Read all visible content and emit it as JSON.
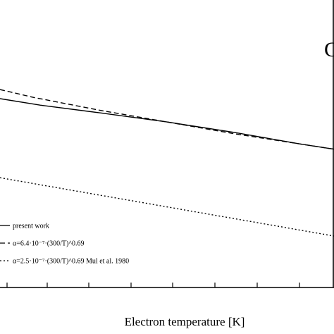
{
  "chart_data": {
    "type": "line",
    "panel_label": "C",
    "xlabel": "Electron temperature [K]",
    "ylabel": "",
    "title": "",
    "grid": false,
    "legend_position": "bottom-left",
    "x_ticks_count": 9,
    "series": [
      {
        "name": "present work",
        "style": "solid",
        "color": "#000000",
        "points": [
          [
            0,
            0.63
          ],
          [
            0.12,
            0.58
          ],
          [
            0.3,
            0.52
          ],
          [
            0.5,
            0.45
          ],
          [
            0.7,
            0.37
          ],
          [
            0.9,
            0.28
          ],
          [
            1.0,
            0.24
          ]
        ]
      },
      {
        "name": "α=6.4·10⁻⁷·(300/T)^0.69",
        "style": "dashed",
        "color": "#000000",
        "points": [
          [
            0,
            0.7
          ],
          [
            0.1,
            0.64
          ],
          [
            0.3,
            0.54
          ],
          [
            0.5,
            0.45
          ],
          [
            0.7,
            0.36
          ],
          [
            0.9,
            0.28
          ],
          [
            1.0,
            0.24
          ]
        ]
      },
      {
        "name": "α=2.5·10⁻⁷·(300/T)^0.69 Mul et al. 1980",
        "style": "dotted",
        "color": "#000000",
        "points": [
          [
            0,
            0.02
          ],
          [
            0.2,
            -0.07
          ],
          [
            0.4,
            -0.16
          ],
          [
            0.6,
            -0.25
          ],
          [
            0.8,
            -0.34
          ],
          [
            1.0,
            -0.43
          ]
        ]
      }
    ]
  }
}
